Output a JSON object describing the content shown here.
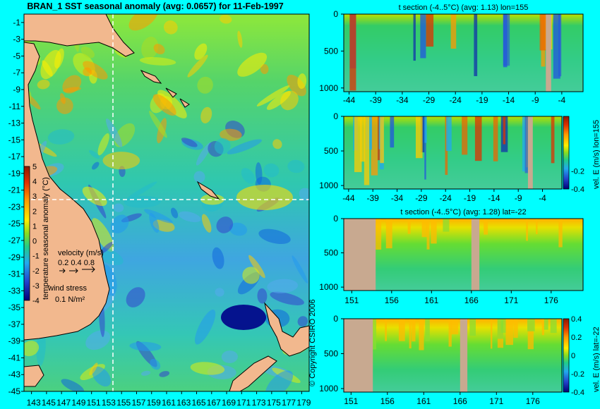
{
  "title": "BRAN_1 SST seasonal anomaly (avg: 0.0657) for 11-Feb-1997",
  "copyright": "© Copyright CSIRO 2006",
  "colors": {
    "background": "#00ffff",
    "land": "#f2b88e",
    "section_land": "#c8a990",
    "crosshair": "#ffffff"
  },
  "chart_data": [
    {
      "type": "heatmap",
      "id": "map",
      "title": "BRAN_1 SST seasonal anomaly (avg: 0.0657) for 11-Feb-1997",
      "x_ticks": [
        143,
        145,
        147,
        149,
        151,
        153,
        155,
        157,
        159,
        161,
        163,
        165,
        167,
        169,
        171,
        173,
        175,
        177,
        179
      ],
      "y_ticks": [
        -1,
        -3,
        -5,
        -7,
        -9,
        -11,
        -13,
        -15,
        -17,
        -19,
        -21,
        -23,
        -25,
        -27,
        -29,
        -31,
        -33,
        -35,
        -37,
        -39,
        -41,
        -43,
        -45
      ],
      "xlim": [
        142,
        180
      ],
      "ylim": [
        -45,
        0
      ],
      "crosshair": {
        "lon": 155,
        "lat": -22
      },
      "colorbar": {
        "label": "temperature seasonal anomaly (°C)",
        "ticks": [
          5,
          4,
          3,
          2,
          1,
          0,
          -1,
          -2,
          -3,
          -4
        ],
        "range": [
          -4,
          5
        ]
      },
      "legend": {
        "velocity_label": "velocity (m/s)",
        "velocity_values": [
          "0.2",
          "0.4",
          "0.8"
        ],
        "wind_label": "wind stress",
        "wind_value": "0.1 N/m²"
      }
    },
    {
      "type": "heatmap",
      "id": "sec1",
      "title": "t section (-4..5°C) (avg: 1.13) lon=155",
      "x_ticks": [
        -44,
        -39,
        -34,
        -29,
        -24,
        -19,
        -14,
        -9,
        -4
      ],
      "y_ticks": [
        0,
        500,
        1000
      ],
      "xlim": [
        -45,
        0
      ],
      "ylim": [
        1050,
        0
      ],
      "land_ranges": [
        [
          -7,
          -6
        ]
      ]
    },
    {
      "type": "heatmap",
      "id": "sec2",
      "title": "",
      "x_ticks": [
        -44,
        -39,
        -34,
        -29,
        -24,
        -19,
        -14,
        -9,
        -4
      ],
      "y_ticks": [
        0,
        500,
        1000
      ],
      "xlim": [
        -45,
        0
      ],
      "ylim": [
        1050,
        0
      ],
      "land_ranges": [
        [
          -7,
          -6
        ]
      ],
      "colorbar": {
        "label": "vel. E (m/s) lon=155",
        "ticks": [
          "-0.2",
          "-0.4"
        ],
        "range": [
          -0.4,
          0.4
        ]
      }
    },
    {
      "type": "heatmap",
      "id": "sec3",
      "title": "t section (-4..5°C) (avg: 1.28) lat=-22",
      "x_ticks": [
        151,
        156,
        161,
        166,
        171,
        176
      ],
      "y_ticks": [
        0,
        500,
        1000
      ],
      "xlim": [
        150,
        180
      ],
      "ylim": [
        1050,
        0
      ],
      "land_ranges": [
        [
          150,
          154
        ],
        [
          166,
          167
        ]
      ]
    },
    {
      "type": "heatmap",
      "id": "sec4",
      "title": "",
      "x_ticks": [
        151,
        156,
        161,
        166,
        171,
        176
      ],
      "y_ticks": [
        0,
        500,
        1000
      ],
      "xlim": [
        150,
        180
      ],
      "ylim": [
        1050,
        0
      ],
      "land_ranges": [
        [
          150,
          154
        ],
        [
          166,
          167
        ]
      ],
      "colorbar": {
        "label": "vel. E (m/s) lat=-22",
        "ticks": [
          "0.4",
          "0.2",
          "0",
          "-0.2",
          "-0.4"
        ],
        "range": [
          -0.4,
          0.4
        ]
      }
    }
  ]
}
